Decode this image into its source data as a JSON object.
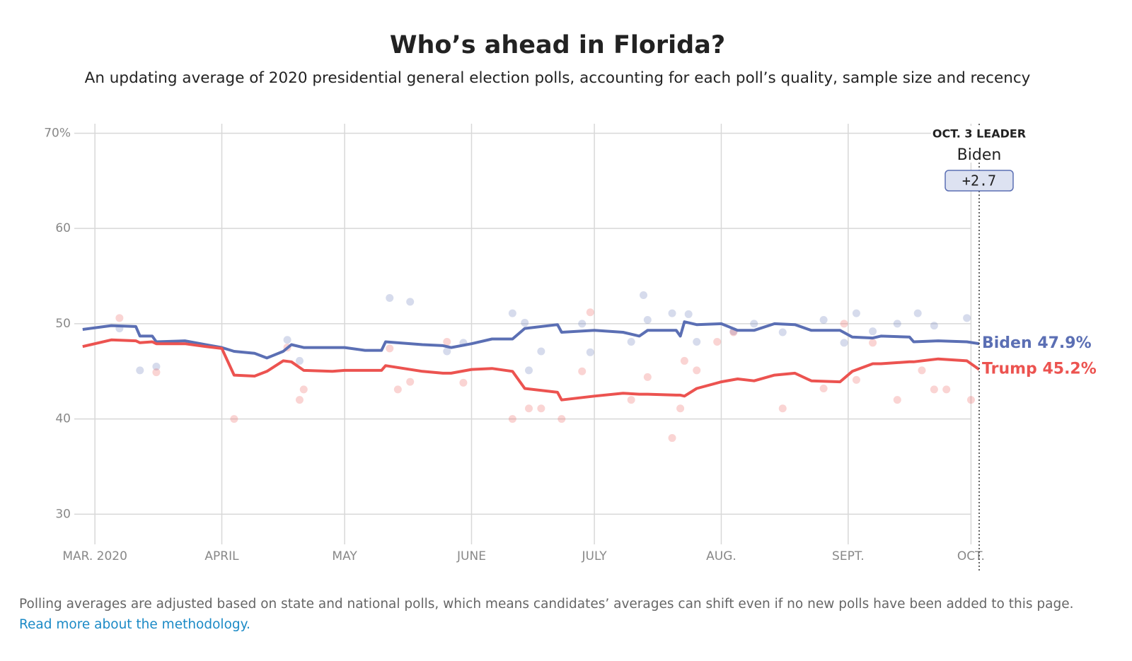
{
  "chart_data": {
    "type": "line",
    "title": "Who’s ahead in Florida?",
    "subtitle": "An updating average of 2020 presidential general election polls, accounting for each poll’s quality, sample size and recency",
    "x": [
      "2020-02-27",
      "2020-03-05",
      "2020-03-11",
      "2020-03-12",
      "2020-03-15",
      "2020-03-16",
      "2020-03-23",
      "2020-03-28",
      "2020-04-01",
      "2020-04-04",
      "2020-04-09",
      "2020-04-12",
      "2020-04-16",
      "2020-04-18",
      "2020-04-21",
      "2020-04-28",
      "2020-05-01",
      "2020-05-06",
      "2020-05-10",
      "2020-05-11",
      "2020-05-20",
      "2020-05-25",
      "2020-05-27",
      "2020-06-01",
      "2020-06-06",
      "2020-06-11",
      "2020-06-14",
      "2020-06-22",
      "2020-06-23",
      "2020-07-01",
      "2020-07-08",
      "2020-07-12",
      "2020-07-14",
      "2020-07-21",
      "2020-07-22",
      "2020-07-23",
      "2020-07-26",
      "2020-08-01",
      "2020-08-05",
      "2020-08-09",
      "2020-08-14",
      "2020-08-19",
      "2020-08-23",
      "2020-08-30",
      "2020-09-02",
      "2020-09-07",
      "2020-09-09",
      "2020-09-16",
      "2020-09-17",
      "2020-09-23",
      "2020-09-30",
      "2020-10-03"
    ],
    "series": [
      {
        "name": "Biden",
        "color": "#5b6fb4",
        "last_label": "47.9%",
        "values": [
          49.4,
          49.8,
          49.7,
          48.7,
          48.7,
          48.1,
          48.2,
          47.8,
          47.5,
          47.1,
          46.9,
          46.4,
          47.1,
          47.8,
          47.5,
          47.5,
          47.5,
          47.2,
          47.2,
          48.1,
          47.8,
          47.7,
          47.5,
          47.9,
          48.4,
          48.4,
          49.5,
          49.9,
          49.1,
          49.3,
          49.1,
          48.7,
          49.3,
          49.3,
          48.7,
          50.2,
          49.9,
          50.0,
          49.3,
          49.3,
          50.0,
          49.9,
          49.3,
          49.3,
          48.6,
          48.5,
          48.7,
          48.6,
          48.1,
          48.2,
          48.1,
          47.9
        ],
        "polls": {
          "x": [
            "2020-03-07",
            "2020-03-12",
            "2020-03-16",
            "2020-04-17",
            "2020-04-20",
            "2020-05-12",
            "2020-05-17",
            "2020-05-26",
            "2020-05-30",
            "2020-06-11",
            "2020-06-14",
            "2020-06-15",
            "2020-06-18",
            "2020-06-28",
            "2020-06-30",
            "2020-07-10",
            "2020-07-13",
            "2020-07-14",
            "2020-07-20",
            "2020-07-24",
            "2020-07-26",
            "2020-08-04",
            "2020-08-09",
            "2020-08-16",
            "2020-08-26",
            "2020-08-31",
            "2020-09-03",
            "2020-09-07",
            "2020-09-13",
            "2020-09-18",
            "2020-09-22",
            "2020-09-30"
          ],
          "values": [
            49.5,
            45.1,
            45.5,
            48.3,
            46.1,
            52.7,
            52.3,
            47.1,
            48.0,
            51.1,
            50.1,
            45.1,
            47.1,
            50.0,
            47.0,
            48.1,
            53.0,
            50.4,
            51.1,
            51.0,
            48.1,
            49.2,
            50.0,
            49.1,
            50.4,
            48.0,
            51.1,
            49.2,
            50.0,
            51.1,
            49.8,
            50.6
          ]
        }
      },
      {
        "name": "Trump",
        "color": "#ec5350",
        "last_label": "45.2%",
        "values": [
          47.6,
          48.3,
          48.2,
          48.0,
          48.1,
          47.9,
          47.9,
          47.6,
          47.4,
          44.6,
          44.5,
          45.0,
          46.1,
          46.0,
          45.1,
          45.0,
          45.1,
          45.1,
          45.1,
          45.6,
          45.0,
          44.8,
          44.8,
          45.2,
          45.3,
          45.0,
          43.2,
          42.8,
          42.0,
          42.4,
          42.7,
          42.6,
          42.6,
          42.5,
          42.5,
          42.4,
          43.2,
          43.9,
          44.2,
          44.0,
          44.6,
          44.8,
          44.0,
          43.9,
          45.0,
          45.8,
          45.8,
          46.0,
          46.0,
          46.3,
          46.1,
          45.2
        ],
        "polls": {
          "x": [
            "2020-03-07",
            "2020-03-16",
            "2020-04-04",
            "2020-04-17",
            "2020-04-20",
            "2020-04-21",
            "2020-05-12",
            "2020-05-14",
            "2020-05-17",
            "2020-05-26",
            "2020-05-30",
            "2020-06-11",
            "2020-06-15",
            "2020-06-18",
            "2020-06-23",
            "2020-06-28",
            "2020-06-30",
            "2020-07-10",
            "2020-07-14",
            "2020-07-20",
            "2020-07-22",
            "2020-07-23",
            "2020-07-26",
            "2020-07-31",
            "2020-08-04",
            "2020-08-16",
            "2020-08-26",
            "2020-08-31",
            "2020-09-03",
            "2020-09-07",
            "2020-09-13",
            "2020-09-19",
            "2020-09-22",
            "2020-09-25",
            "2020-10-01"
          ],
          "values": [
            50.6,
            44.9,
            40.0,
            47.5,
            42.0,
            43.1,
            47.4,
            43.1,
            43.9,
            48.1,
            43.8,
            40.0,
            41.1,
            41.1,
            40.0,
            45.0,
            51.2,
            42.0,
            44.4,
            38.0,
            41.1,
            46.1,
            45.1,
            48.1,
            49.1,
            41.1,
            43.2,
            50.0,
            44.1,
            48.0,
            42.0,
            45.1,
            43.1,
            43.1,
            42.0
          ]
        }
      }
    ],
    "xlim": [
      "2020-02-26",
      "2020-10-03"
    ],
    "xticks": [
      {
        "value": "2020-03-01",
        "label": "MAR. 2020"
      },
      {
        "value": "2020-04-01",
        "label": "APRIL"
      },
      {
        "value": "2020-05-01",
        "label": "MAY"
      },
      {
        "value": "2020-06-01",
        "label": "JUNE"
      },
      {
        "value": "2020-07-01",
        "label": "JULY"
      },
      {
        "value": "2020-08-01",
        "label": "AUG."
      },
      {
        "value": "2020-09-01",
        "label": "SEPT."
      },
      {
        "value": "2020-10-01",
        "label": "OCT."
      }
    ],
    "ylim": [
      27.5,
      71
    ],
    "yticks": [
      {
        "value": 70,
        "label": "70%"
      },
      60,
      50,
      40,
      30
    ],
    "grid": true,
    "annotation": {
      "x": "2020-10-03",
      "title": "OCT. 3 LEADER",
      "leader": "Biden",
      "margin": {
        "value": 2.7,
        "label": "+2.7"
      }
    },
    "footnote": {
      "text": "Polling averages are adjusted based on state and national polls, which means candidates’ averages can shift even if no new polls have been added to this page.",
      "link": "Read more about the methodology."
    }
  }
}
